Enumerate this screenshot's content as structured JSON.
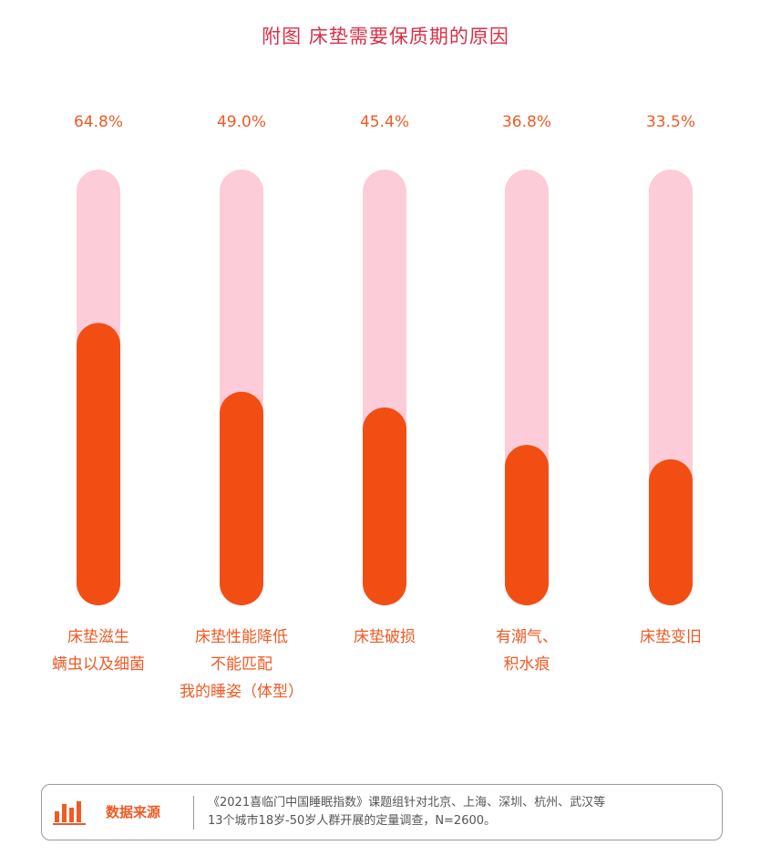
{
  "colors": {
    "title": "#d9304a",
    "label": "#f05a24",
    "track": "#fcccd9",
    "bar": "#f24e14"
  },
  "chart_data": {
    "type": "bar",
    "orientation": "vertical",
    "title": "附图 床垫需要保质期的原因",
    "categories": [
      [
        "床垫滋生",
        "螨虫以及细菌"
      ],
      [
        "床垫性能降低",
        "不能匹配",
        "我的睡姿（体型）"
      ],
      [
        "床垫破损"
      ],
      [
        "有潮气、",
        "积水痕"
      ],
      [
        "床垫变旧"
      ]
    ],
    "values": [
      64.8,
      49.0,
      45.4,
      36.8,
      33.5
    ],
    "value_labels": [
      "64.8%",
      "49.0%",
      "45.4%",
      "36.8%",
      "33.5%"
    ],
    "ylim": [
      0,
      100
    ],
    "unit": "%"
  },
  "source": {
    "logo_text": "数据来源",
    "lines": [
      "《2021喜临门中国睡眠指数》课题组针对北京、上海、深圳、杭州、武汉等",
      "13个城市18岁-50岁人群开展的定量调查，N=2600。"
    ]
  }
}
